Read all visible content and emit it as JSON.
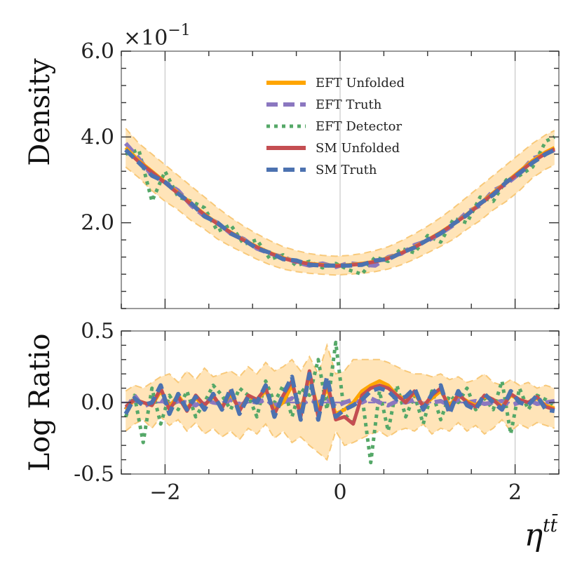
{
  "chart_data": {
    "type": "line",
    "title": "",
    "xlabel_base": "η",
    "xlabel_sup": "tt̄",
    "x_range": [
      -2.5,
      2.5
    ],
    "x_ticks": [
      -2,
      0,
      2
    ],
    "x_tick_labels": [
      "−2",
      "0",
      "2"
    ],
    "top_panel": {
      "ylabel": "Density",
      "y_range": [
        0,
        6.0
      ],
      "y_ticks": [
        2.0,
        4.0,
        6.0
      ],
      "y_tick_labels": [
        "2.0",
        "4.0",
        "6.0"
      ],
      "multiplier_label": "×10",
      "multiplier_exp": "−1",
      "series_x": [
        -2.45,
        -2.3,
        -2.15,
        -2.0,
        -1.85,
        -1.7,
        -1.55,
        -1.4,
        -1.25,
        -1.1,
        -0.95,
        -0.8,
        -0.65,
        -0.5,
        -0.35,
        -0.2,
        -0.05,
        0.1,
        0.25,
        0.4,
        0.55,
        0.7,
        0.85,
        1.0,
        1.15,
        1.3,
        1.45,
        1.6,
        1.75,
        1.9,
        2.05,
        2.2,
        2.35,
        2.45
      ],
      "series": [
        {
          "name": "EFT Unfolded",
          "color": "#ffa500",
          "dash": "solid",
          "values": [
            3.75,
            3.45,
            3.2,
            2.95,
            2.7,
            2.45,
            2.2,
            1.98,
            1.78,
            1.6,
            1.44,
            1.3,
            1.18,
            1.1,
            1.05,
            1.02,
            1.0,
            1.02,
            1.05,
            1.1,
            1.18,
            1.3,
            1.44,
            1.6,
            1.78,
            1.98,
            2.2,
            2.45,
            2.7,
            2.95,
            3.2,
            3.45,
            3.65,
            3.75
          ]
        },
        {
          "name": "EFT Truth",
          "color": "#8b77c0",
          "dash": "dashed",
          "values": [
            3.85,
            3.5,
            3.1,
            2.95,
            2.75,
            2.4,
            2.15,
            2.0,
            1.75,
            1.62,
            1.4,
            1.28,
            1.2,
            1.08,
            1.0,
            1.05,
            0.97,
            1.06,
            1.02,
            1.0,
            1.2,
            1.28,
            1.48,
            1.58,
            1.75,
            1.95,
            2.25,
            2.4,
            2.75,
            2.9,
            3.15,
            3.5,
            3.6,
            3.7
          ]
        },
        {
          "name": "EFT Detector",
          "color": "#55a868",
          "dash": "dotted",
          "values": [
            3.6,
            3.7,
            2.5,
            3.2,
            2.6,
            2.5,
            2.35,
            1.8,
            1.95,
            1.5,
            1.6,
            1.15,
            1.25,
            1.0,
            1.1,
            0.95,
            1.05,
            0.9,
            0.8,
            1.2,
            1.1,
            1.4,
            1.3,
            1.7,
            1.55,
            2.1,
            2.0,
            2.6,
            2.5,
            3.0,
            3.1,
            3.3,
            3.9,
            4.0
          ]
        },
        {
          "name": "SM Unfolded",
          "color": "#c44e52",
          "dash": "solid",
          "values": [
            3.7,
            3.42,
            3.18,
            2.93,
            2.68,
            2.43,
            2.19,
            1.97,
            1.77,
            1.59,
            1.43,
            1.29,
            1.17,
            1.09,
            1.04,
            1.01,
            0.99,
            1.01,
            1.04,
            1.09,
            1.17,
            1.29,
            1.43,
            1.59,
            1.77,
            1.97,
            2.19,
            2.43,
            2.68,
            2.93,
            3.18,
            3.42,
            3.62,
            3.72
          ]
        },
        {
          "name": "SM Truth",
          "color": "#4c72b0",
          "dash": "dashed",
          "values": [
            3.7,
            3.4,
            3.1,
            2.95,
            2.68,
            2.45,
            2.15,
            2.0,
            1.75,
            1.6,
            1.4,
            1.3,
            1.15,
            1.12,
            1.02,
            1.0,
            1.0,
            1.0,
            1.02,
            1.12,
            1.15,
            1.3,
            1.42,
            1.6,
            1.75,
            1.98,
            2.18,
            2.45,
            2.65,
            2.95,
            3.15,
            3.4,
            3.6,
            3.7
          ]
        }
      ],
      "band_label": "EFT Unfolded uncertainty",
      "band_lower": [
        3.3,
        3.05,
        2.75,
        2.5,
        2.3,
        2.05,
        1.85,
        1.62,
        1.45,
        1.3,
        1.15,
        1.02,
        0.92,
        0.86,
        0.82,
        0.8,
        0.78,
        0.8,
        0.82,
        0.86,
        0.92,
        1.02,
        1.15,
        1.3,
        1.45,
        1.62,
        1.85,
        2.05,
        2.3,
        2.5,
        2.75,
        3.05,
        3.25,
        3.35
      ],
      "band_upper": [
        4.2,
        3.85,
        3.6,
        3.35,
        3.1,
        2.85,
        2.6,
        2.35,
        2.12,
        1.92,
        1.74,
        1.58,
        1.44,
        1.35,
        1.28,
        1.24,
        1.22,
        1.24,
        1.28,
        1.35,
        1.44,
        1.58,
        1.74,
        1.92,
        2.12,
        2.35,
        2.6,
        2.85,
        3.1,
        3.35,
        3.6,
        3.85,
        4.05,
        4.15
      ]
    },
    "bottom_panel": {
      "ylabel": "Log Ratio",
      "y_range": [
        -0.5,
        0.5
      ],
      "y_ticks": [
        -0.5,
        0.0,
        0.5
      ],
      "y_tick_labels": [
        "-0.5",
        "0.0",
        "0.5"
      ],
      "reference_line": 0.0,
      "series_x": [
        -2.45,
        -2.35,
        -2.25,
        -2.15,
        -2.05,
        -1.95,
        -1.85,
        -1.75,
        -1.65,
        -1.55,
        -1.45,
        -1.35,
        -1.25,
        -1.15,
        -1.05,
        -0.95,
        -0.85,
        -0.75,
        -0.65,
        -0.55,
        -0.45,
        -0.35,
        -0.25,
        -0.15,
        -0.05,
        0.05,
        0.15,
        0.25,
        0.35,
        0.45,
        0.55,
        0.65,
        0.75,
        0.85,
        0.95,
        1.05,
        1.15,
        1.25,
        1.35,
        1.45,
        1.55,
        1.65,
        1.75,
        1.85,
        1.95,
        2.05,
        2.15,
        2.25,
        2.35,
        2.45
      ],
      "series": [
        {
          "name": "EFT Unfolded",
          "color": "#ffa500",
          "dash": "solid",
          "values": [
            -0.05,
            0.02,
            0.0,
            -0.02,
            0.08,
            -0.03,
            0.05,
            -0.04,
            0.03,
            -0.02,
            0.04,
            -0.03,
            0.06,
            -0.05,
            0.04,
            0.02,
            0.08,
            -0.05,
            0.0,
            0.12,
            -0.06,
            0.18,
            -0.05,
            0.1,
            -0.08,
            -0.05,
            0.0,
            0.08,
            0.12,
            0.15,
            0.12,
            0.05,
            0.02,
            0.06,
            -0.02,
            0.03,
            0.08,
            -0.02,
            0.05,
            0.01,
            -0.02,
            0.04,
            0.02,
            -0.03,
            0.05,
            0.02,
            0.0,
            0.03,
            -0.02,
            -0.04
          ]
        },
        {
          "name": "EFT Truth",
          "color": "#8b77c0",
          "dash": "dashed",
          "values": [
            -0.05,
            0.05,
            -0.03,
            0.0,
            0.02,
            -0.02,
            0.01,
            0.0,
            -0.02,
            0.02,
            0.0,
            -0.01,
            0.02,
            -0.02,
            0.01,
            0.0,
            0.02,
            -0.02,
            0.0,
            0.03,
            -0.02,
            0.02,
            0.0,
            0.03,
            -0.03,
            0.0,
            0.02,
            0.0,
            0.03,
            0.0,
            -0.02,
            0.01,
            0.0,
            0.02,
            -0.01,
            0.0,
            0.01,
            -0.02,
            0.02,
            0.0,
            0.01,
            -0.01,
            0.0,
            0.01,
            -0.02,
            0.0,
            0.02,
            -0.01,
            0.0,
            0.01
          ]
        },
        {
          "name": "EFT Detector",
          "color": "#55a868",
          "dash": "dotted",
          "values": [
            -0.1,
            0.05,
            -0.28,
            0.1,
            -0.15,
            0.05,
            -0.05,
            0.08,
            -0.1,
            0.0,
            0.12,
            0.05,
            -0.05,
            0.1,
            0.05,
            -0.1,
            0.15,
            0.0,
            0.12,
            -0.1,
            0.1,
            0.05,
            0.3,
            -0.05,
            0.42,
            -0.08,
            -0.15,
            0.05,
            -0.42,
            0.08,
            -0.2,
            0.12,
            -0.1,
            0.05,
            -0.15,
            0.08,
            -0.12,
            0.05,
            0.0,
            0.1,
            -0.05,
            0.03,
            -0.05,
            0.15,
            -0.22,
            0.1,
            -0.05,
            0.05,
            0.02,
            -0.02
          ]
        },
        {
          "name": "SM Unfolded",
          "color": "#c44e52",
          "dash": "solid",
          "values": [
            -0.03,
            0.02,
            0.0,
            -0.02,
            0.1,
            -0.05,
            0.04,
            -0.06,
            0.05,
            -0.02,
            0.05,
            -0.04,
            0.08,
            -0.06,
            0.05,
            0.02,
            0.1,
            -0.08,
            0.05,
            0.15,
            -0.1,
            0.22,
            -0.1,
            0.15,
            -0.12,
            -0.1,
            -0.15,
            0.05,
            0.1,
            0.12,
            0.1,
            0.05,
            0.0,
            0.08,
            -0.03,
            0.05,
            0.1,
            -0.05,
            0.06,
            0.0,
            -0.03,
            0.05,
            0.02,
            -0.04,
            0.06,
            0.02,
            0.0,
            0.04,
            -0.03,
            -0.05
          ]
        },
        {
          "name": "SM Truth",
          "color": "#4c72b0",
          "dash": "dashed",
          "values": [
            -0.08,
            0.03,
            -0.02,
            0.0,
            0.12,
            -0.08,
            0.06,
            -0.05,
            0.04,
            -0.05,
            0.06,
            -0.05,
            0.1,
            -0.08,
            0.04,
            0.0,
            0.12,
            -0.1,
            0.06,
            0.18,
            -0.12,
            0.2,
            -0.12,
            0.18,
            -0.1,
            -0.05,
            -0.02,
            0.02,
            0.08,
            0.1,
            0.08,
            0.02,
            0.04,
            0.1,
            -0.05,
            0.06,
            0.12,
            -0.08,
            0.08,
            -0.02,
            -0.05,
            0.06,
            0.0,
            -0.05,
            0.08,
            0.0,
            -0.02,
            0.05,
            -0.05,
            -0.06
          ]
        }
      ],
      "band_lower": [
        -0.2,
        -0.15,
        -0.12,
        -0.18,
        -0.1,
        -0.16,
        -0.12,
        -0.2,
        -0.14,
        -0.22,
        -0.18,
        -0.24,
        -0.2,
        -0.26,
        -0.18,
        -0.22,
        -0.15,
        -0.25,
        -0.2,
        -0.28,
        -0.24,
        -0.3,
        -0.35,
        -0.4,
        -0.2,
        -0.3,
        -0.28,
        -0.25,
        -0.22,
        -0.2,
        -0.24,
        -0.2,
        -0.18,
        -0.2,
        -0.15,
        -0.22,
        -0.18,
        -0.2,
        -0.14,
        -0.2,
        -0.16,
        -0.22,
        -0.18,
        -0.12,
        -0.2,
        -0.15,
        -0.18,
        -0.14,
        -0.16,
        -0.18
      ],
      "band_upper": [
        0.08,
        0.12,
        0.1,
        0.14,
        0.18,
        0.2,
        0.14,
        0.22,
        0.16,
        0.24,
        0.18,
        0.2,
        0.22,
        0.18,
        0.25,
        0.2,
        0.28,
        0.22,
        0.25,
        0.3,
        0.22,
        0.32,
        0.2,
        0.4,
        0.2,
        0.22,
        0.3,
        0.3,
        0.3,
        0.3,
        0.28,
        0.25,
        0.22,
        0.2,
        0.2,
        0.18,
        0.2,
        0.16,
        0.18,
        0.14,
        0.16,
        0.2,
        0.14,
        0.12,
        0.16,
        0.12,
        0.14,
        0.1,
        0.12,
        0.1
      ]
    },
    "legend": {
      "placement": "top-center",
      "entries": [
        {
          "label": "EFT Unfolded",
          "color": "#ffa500",
          "dash": "solid"
        },
        {
          "label": "EFT Truth",
          "color": "#8b77c0",
          "dash": "dashed"
        },
        {
          "label": "EFT Detector",
          "color": "#55a868",
          "dash": "dotted"
        },
        {
          "label": "SM Unfolded",
          "color": "#c44e52",
          "dash": "solid"
        },
        {
          "label": "SM Truth",
          "color": "#4c72b0",
          "dash": "dashed"
        }
      ]
    },
    "band_color": "#ffe4b8",
    "band_edge_color": "#f8c97a",
    "grid": true
  }
}
